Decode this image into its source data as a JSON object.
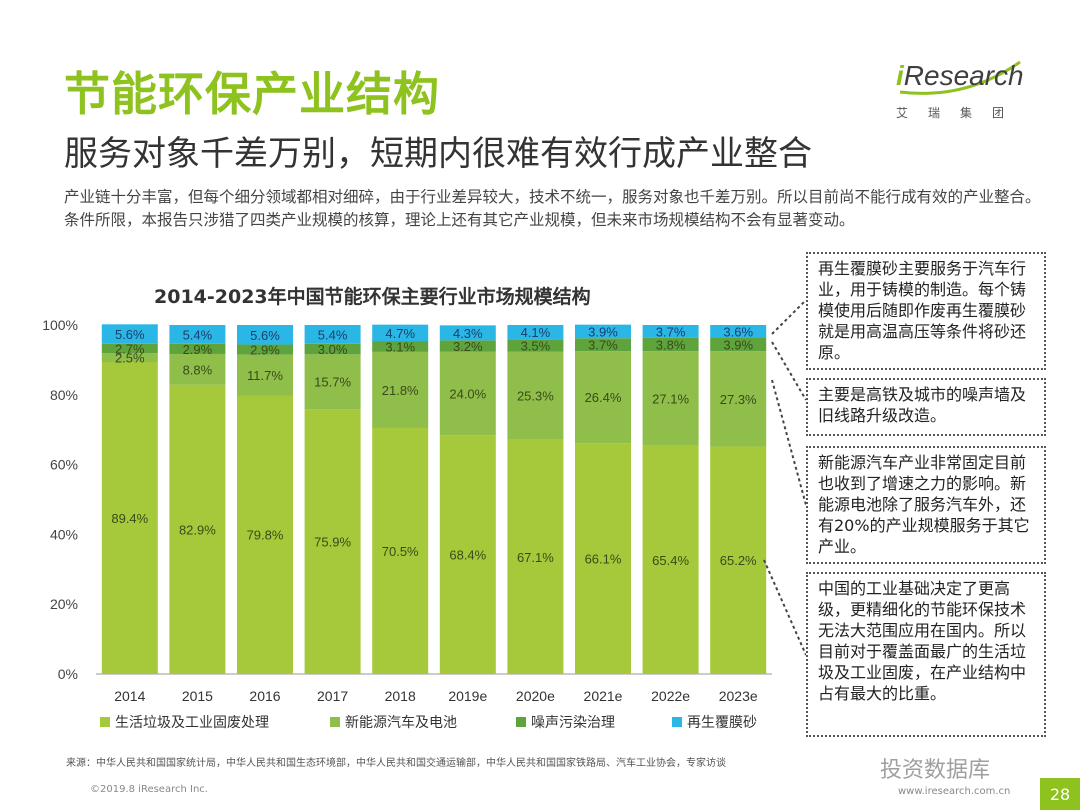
{
  "header": {
    "title": "节能环保产业结构",
    "subtitle": "服务对象千差万别，短期内很难有效行成产业整合"
  },
  "logo": {
    "brand_i": "i",
    "brand_rest": "Research",
    "cn": "艾瑞集团",
    "accent": "#8dc21f"
  },
  "intro": "产业链十分丰富，但每个细分领域都相对细碎，由于行业差异较大，技术不统一，服务对象也千差万别。所以目前尚不能行成有效的产业整合。条件所限，本报告只涉猎了四类产业规模的核算，理论上还有其它产业规模，但未来市场规模结构不会有显著变动。",
  "chart_data": {
    "type": "bar",
    "stacked": true,
    "title": "2014-2023年中国节能环保主要行业市场规模结构",
    "categories": [
      "2014",
      "2015",
      "2016",
      "2017",
      "2018",
      "2019e",
      "2020e",
      "2021e",
      "2022e",
      "2023e"
    ],
    "y_ticks": [
      "0%",
      "20%",
      "40%",
      "60%",
      "80%",
      "100%"
    ],
    "ylim": [
      0,
      100
    ],
    "series": [
      {
        "name": "生活垃圾及工业固废处理",
        "color": "#a5c93a",
        "values": [
          89.4,
          82.9,
          79.8,
          75.9,
          70.5,
          68.4,
          67.1,
          66.1,
          65.4,
          65.2
        ],
        "labels": [
          "89.4%",
          "82.9%",
          "79.8%",
          "75.9%",
          "70.5%",
          "68.4%",
          "67.1%",
          "66.1%",
          "65.4%",
          "65.2%"
        ]
      },
      {
        "name": "新能源汽车及电池",
        "color": "#8fbe4a",
        "values": [
          2.5,
          8.8,
          11.7,
          15.7,
          21.8,
          24.0,
          25.3,
          26.4,
          27.1,
          27.3
        ],
        "labels": [
          "2.5%",
          "8.8%",
          "11.7%",
          "15.7%",
          "21.8%",
          "24.0%",
          "25.3%",
          "26.4%",
          "27.1%",
          "27.3%"
        ]
      },
      {
        "name": "噪声污染治理",
        "color": "#5ea33c",
        "values": [
          2.7,
          2.9,
          2.9,
          3.0,
          3.1,
          3.2,
          3.5,
          3.7,
          3.8,
          3.9
        ],
        "labels": [
          "2.7%",
          "2.9%",
          "2.9%",
          "3.0%",
          "3.1%",
          "3.2%",
          "3.5%",
          "3.7%",
          "3.8%",
          "3.9%"
        ]
      },
      {
        "name": "再生覆膜砂",
        "color": "#2ab7e6",
        "values": [
          5.6,
          5.4,
          5.6,
          5.4,
          4.7,
          4.3,
          4.1,
          3.9,
          3.7,
          3.6
        ],
        "labels": [
          "5.6%",
          "5.4%",
          "5.6%",
          "5.4%",
          "4.7%",
          "4.3%",
          "4.1%",
          "3.9%",
          "3.7%",
          "3.6%"
        ]
      }
    ]
  },
  "notes": [
    "再生覆膜砂主要服务于汽车行业，用于铸模的制造。每个铸模使用后随即作废再生覆膜砂就是用高温高压等条件将砂还原。",
    "主要是高铁及城市的噪声墙及旧线路升级改造。",
    "新能源汽车产业非常固定目前也收到了增速之力的影响。新能源电池除了服务汽车外，还有20%的产业规模服务于其它产业。",
    "中国的工业基础决定了更高级，更精细化的节能环保技术无法大范围应用在国内。所以目前对于覆盖面最广的生活垃圾及工业固废，在产业结构中占有最大的比重。"
  ],
  "footer": {
    "source": "来源：中华人民共和国国家统计局，中华人民共和国生态环境部，中华人民共和国交通运输部，中华人民共和国国家铁路局、汽车工业协会，专家访谈",
    "copyright": "©2019.8 iResearch Inc.",
    "website": "www.iresearch.com.cn",
    "page": "28",
    "watermark": "投资数据库"
  }
}
